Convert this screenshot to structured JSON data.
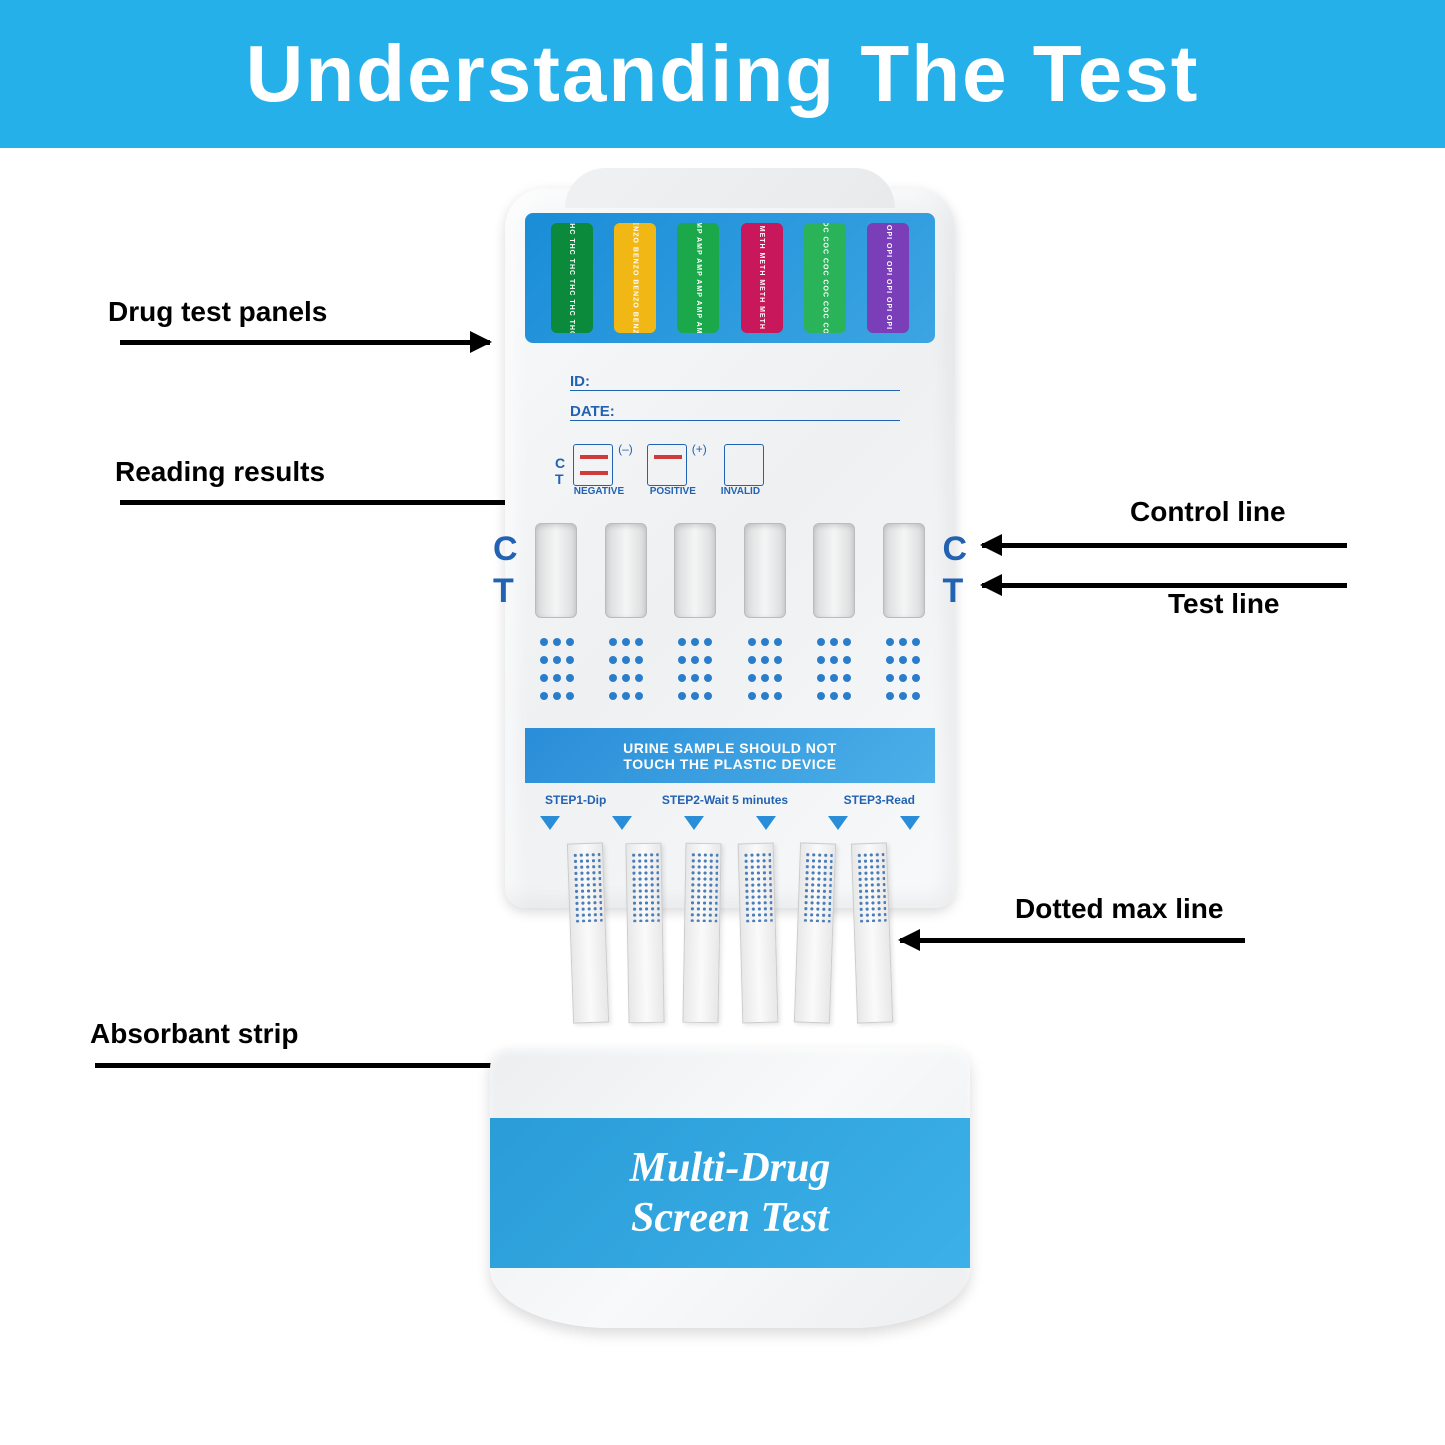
{
  "header": {
    "title": "Understanding The Test",
    "bg": "#25b0ea",
    "color": "#ffffff"
  },
  "annotations": {
    "panels": "Drug test panels",
    "reading": "Reading results",
    "control": "Control line",
    "test": "Test line",
    "maxline": "Dotted max line",
    "absorb": "Absorbant strip"
  },
  "panels": [
    {
      "code": "THC",
      "color": "#0a8a3a"
    },
    {
      "code": "BENZO",
      "color": "#f1b714"
    },
    {
      "code": "AMP",
      "color": "#1aa84a"
    },
    {
      "code": "METH",
      "color": "#c8175a"
    },
    {
      "code": "COC",
      "color": "#2bb35a"
    },
    {
      "code": "OPI",
      "color": "#7a3fb8"
    }
  ],
  "fields": {
    "id": "ID:",
    "date": "DATE:"
  },
  "legend": {
    "C": "C",
    "T": "T",
    "neg": "NEGATIVE",
    "neg_sign": "(–)",
    "pos": "POSITIVE",
    "pos_sign": "(+)",
    "inv": "INVALID"
  },
  "ct": {
    "C": "C",
    "T": "T"
  },
  "warning": {
    "l1": "URINE SAMPLE SHOULD NOT",
    "l2": "TOUCH THE PLASTIC DEVICE"
  },
  "steps": {
    "s1": "STEP1-Dip",
    "s2": "STEP2-Wait 5 minutes",
    "s3": "STEP3-Read"
  },
  "cap": {
    "l1": "Multi-Drug",
    "l2": "Screen Test"
  },
  "stripCount": 6,
  "dotRows": 4
}
